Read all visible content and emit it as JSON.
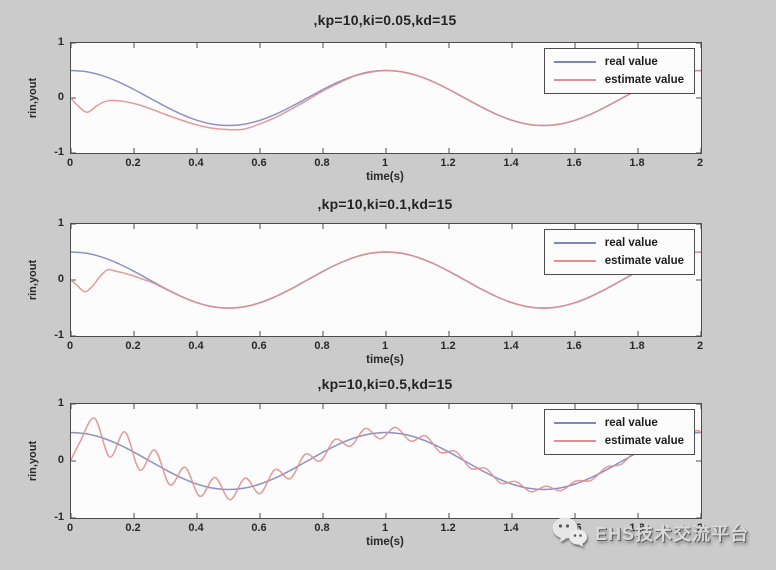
{
  "figure": {
    "background": "#cbcbcb",
    "watermark": {
      "icon": "wechat-icon",
      "text": "EHS技术交流平台"
    }
  },
  "colors": {
    "real_line": "#7f86bb",
    "estimate_line": "#e09090",
    "plot_background": "#fcfcfc",
    "axis": "#4c4c4c",
    "text": "#2a2a2a"
  },
  "chart_data": [
    {
      "type": "line",
      "title": ",kp=10,ki=0.05,kd=15",
      "xlabel": "time(s)",
      "ylabel": "rin,yout",
      "xlim": [
        0,
        2
      ],
      "ylim": [
        -1,
        1
      ],
      "xticks": [
        "0",
        "0.2",
        "0.4",
        "0.6",
        "0.8",
        "1",
        "1.2",
        "1.4",
        "1.6",
        "1.8",
        "2"
      ],
      "yticks": [
        "1",
        "0",
        "-1"
      ],
      "grid": false,
      "legend": {
        "position": "top-right"
      },
      "series": [
        {
          "name": "real value",
          "color": "#7f86bb",
          "x": [
            0,
            0.05,
            0.1,
            0.15,
            0.2,
            0.25,
            0.3,
            0.35,
            0.4,
            0.45,
            0.5,
            0.55,
            0.6,
            0.65,
            0.7,
            0.75,
            0.8,
            0.85,
            0.9,
            0.95,
            1,
            1.05,
            1.1,
            1.15,
            1.2,
            1.25,
            1.3,
            1.35,
            1.4,
            1.45,
            1.5,
            1.55,
            1.6,
            1.65,
            1.7,
            1.75,
            1.8,
            1.85,
            1.9,
            1.95,
            2
          ],
          "y": [
            0.5,
            0.476,
            0.405,
            0.294,
            0.155,
            0,
            -0.155,
            -0.294,
            -0.405,
            -0.476,
            -0.5,
            -0.476,
            -0.405,
            -0.294,
            -0.155,
            0,
            0.155,
            0.294,
            0.405,
            0.476,
            0.5,
            0.476,
            0.405,
            0.294,
            0.155,
            0,
            -0.155,
            -0.294,
            -0.405,
            -0.476,
            -0.5,
            -0.476,
            -0.405,
            -0.294,
            -0.155,
            0,
            0.155,
            0.294,
            0.405,
            0.476,
            0.5
          ]
        },
        {
          "name": "estimate value",
          "color": "#e09090",
          "x": [
            0,
            0.02,
            0.05,
            0.08,
            0.11,
            0.15,
            0.2,
            0.25,
            0.3,
            0.35,
            0.4,
            0.45,
            0.5,
            0.55,
            0.6,
            0.65,
            0.7,
            0.75,
            0.8,
            0.85,
            0.9,
            0.95,
            1,
            1.05,
            1.1,
            1.15,
            1.2,
            1.25,
            1.3,
            1.35,
            1.4,
            1.45,
            1.5,
            1.55,
            1.6,
            1.65,
            1.7,
            1.75,
            1.8,
            1.85,
            1.9,
            1.95,
            2
          ],
          "y": [
            0,
            -0.13,
            -0.26,
            -0.15,
            -0.06,
            -0.05,
            -0.1,
            -0.19,
            -0.3,
            -0.4,
            -0.49,
            -0.55,
            -0.575,
            -0.565,
            -0.47,
            -0.35,
            -0.2,
            -0.04,
            0.13,
            0.27,
            0.4,
            0.47,
            0.5,
            0.476,
            0.405,
            0.294,
            0.155,
            0,
            -0.155,
            -0.294,
            -0.405,
            -0.476,
            -0.5,
            -0.476,
            -0.405,
            -0.294,
            -0.155,
            0,
            0.155,
            0.294,
            0.405,
            0.476,
            0.5
          ]
        }
      ]
    },
    {
      "type": "line",
      "title": ",kp=10,ki=0.1,kd=15",
      "xlabel": "time(s)",
      "ylabel": "rin,yout",
      "xlim": [
        0,
        2
      ],
      "ylim": [
        -1,
        1
      ],
      "xticks": [
        "0",
        "0.2",
        "0.4",
        "0.6",
        "0.8",
        "1",
        "1.2",
        "1.4",
        "1.6",
        "1.8",
        "2"
      ],
      "yticks": [
        "1",
        "0",
        "-1"
      ],
      "grid": false,
      "legend": {
        "position": "top-right"
      },
      "series": [
        {
          "name": "real value",
          "color": "#7f86bb",
          "x": [
            0,
            0.05,
            0.1,
            0.15,
            0.2,
            0.25,
            0.3,
            0.35,
            0.4,
            0.45,
            0.5,
            0.55,
            0.6,
            0.65,
            0.7,
            0.75,
            0.8,
            0.85,
            0.9,
            0.95,
            1,
            1.05,
            1.1,
            1.15,
            1.2,
            1.25,
            1.3,
            1.35,
            1.4,
            1.45,
            1.5,
            1.55,
            1.6,
            1.65,
            1.7,
            1.75,
            1.8,
            1.85,
            1.9,
            1.95,
            2
          ],
          "y": [
            0.5,
            0.476,
            0.405,
            0.294,
            0.155,
            0,
            -0.155,
            -0.294,
            -0.405,
            -0.476,
            -0.5,
            -0.476,
            -0.405,
            -0.294,
            -0.155,
            0,
            0.155,
            0.294,
            0.405,
            0.476,
            0.5,
            0.476,
            0.405,
            0.294,
            0.155,
            0,
            -0.155,
            -0.294,
            -0.405,
            -0.476,
            -0.5,
            -0.476,
            -0.405,
            -0.294,
            -0.155,
            0,
            0.155,
            0.294,
            0.405,
            0.476,
            0.5
          ]
        },
        {
          "name": "estimate value",
          "color": "#e09090",
          "x": [
            0,
            0.02,
            0.045,
            0.07,
            0.09,
            0.115,
            0.14,
            0.17,
            0.2,
            0.23,
            0.26,
            0.3,
            0.35,
            0.4,
            0.45,
            0.5,
            0.55,
            0.6,
            0.65,
            0.7,
            0.75,
            0.8,
            0.85,
            0.9,
            0.95,
            1,
            1.05,
            1.1,
            1.15,
            1.2,
            1.25,
            1.3,
            1.35,
            1.4,
            1.45,
            1.5,
            1.55,
            1.6,
            1.65,
            1.7,
            1.75,
            1.8,
            1.85,
            1.9,
            1.95,
            2
          ],
          "y": [
            0,
            -0.1,
            -0.21,
            -0.1,
            0.05,
            0.18,
            0.16,
            0.12,
            0.07,
            0.01,
            -0.05,
            -0.16,
            -0.295,
            -0.405,
            -0.476,
            -0.5,
            -0.476,
            -0.405,
            -0.294,
            -0.155,
            0,
            0.155,
            0.294,
            0.405,
            0.476,
            0.5,
            0.476,
            0.405,
            0.294,
            0.155,
            0,
            -0.155,
            -0.294,
            -0.405,
            -0.476,
            -0.5,
            -0.476,
            -0.405,
            -0.294,
            -0.155,
            0,
            0.155,
            0.294,
            0.405,
            0.476,
            0.5
          ]
        }
      ]
    },
    {
      "type": "line",
      "title": ",kp=10,ki=0.5,kd=15",
      "xlabel": "time(s)",
      "ylabel": "rin,yout",
      "xlim": [
        0,
        2
      ],
      "ylim": [
        -1,
        1
      ],
      "xticks": [
        "0",
        "0.2",
        "0.4",
        "0.6",
        "0.8",
        "1",
        "1.2",
        "1.4",
        "1.6",
        "1.8",
        "2"
      ],
      "yticks": [
        "1",
        "0",
        "-1"
      ],
      "grid": false,
      "legend": {
        "position": "top-right"
      },
      "series": [
        {
          "name": "real value",
          "color": "#7f86bb",
          "x": [
            0,
            0.05,
            0.1,
            0.15,
            0.2,
            0.25,
            0.3,
            0.35,
            0.4,
            0.45,
            0.5,
            0.55,
            0.6,
            0.65,
            0.7,
            0.75,
            0.8,
            0.85,
            0.9,
            0.95,
            1,
            1.05,
            1.1,
            1.15,
            1.2,
            1.25,
            1.3,
            1.35,
            1.4,
            1.45,
            1.5,
            1.55,
            1.6,
            1.65,
            1.7,
            1.75,
            1.8,
            1.85,
            1.9,
            1.95,
            2
          ],
          "y": [
            0.5,
            0.476,
            0.405,
            0.294,
            0.155,
            0,
            -0.155,
            -0.294,
            -0.405,
            -0.476,
            -0.5,
            -0.476,
            -0.405,
            -0.294,
            -0.155,
            0,
            0.155,
            0.294,
            0.405,
            0.476,
            0.5,
            0.476,
            0.405,
            0.294,
            0.155,
            0,
            -0.155,
            -0.294,
            -0.405,
            -0.476,
            -0.5,
            -0.476,
            -0.405,
            -0.294,
            -0.155,
            0,
            0.155,
            0.294,
            0.405,
            0.476,
            0.5
          ]
        },
        {
          "name": "estimate value",
          "color": "#e09090",
          "x": [
            0,
            0.03,
            0.075,
            0.123,
            0.171,
            0.218,
            0.266,
            0.314,
            0.362,
            0.409,
            0.457,
            0.505,
            0.553,
            0.6,
            0.648,
            0.696,
            0.744,
            0.791,
            0.839,
            0.887,
            0.935,
            0.982,
            1.03,
            1.078,
            1.126,
            1.173,
            1.221,
            1.269,
            1.317,
            1.364,
            1.412,
            1.46,
            1.508,
            1.555,
            1.603,
            1.651,
            1.699,
            1.746,
            1.794,
            1.842,
            1.89,
            1.937,
            1.985,
            2
          ],
          "y": [
            0.02,
            0.35,
            0.75,
            0.07,
            0.51,
            -0.16,
            0.19,
            -0.42,
            -0.11,
            -0.62,
            -0.29,
            -0.68,
            -0.3,
            -0.57,
            -0.15,
            -0.31,
            0.12,
            0,
            0.38,
            0.26,
            0.57,
            0.39,
            0.59,
            0.35,
            0.44,
            0.15,
            0.17,
            -0.13,
            -0.13,
            -0.39,
            -0.36,
            -0.54,
            -0.44,
            -0.52,
            -0.35,
            -0.34,
            -0.11,
            -0.06,
            0.18,
            0.23,
            0.42,
            0.42,
            0.53,
            0.5
          ]
        }
      ]
    }
  ]
}
